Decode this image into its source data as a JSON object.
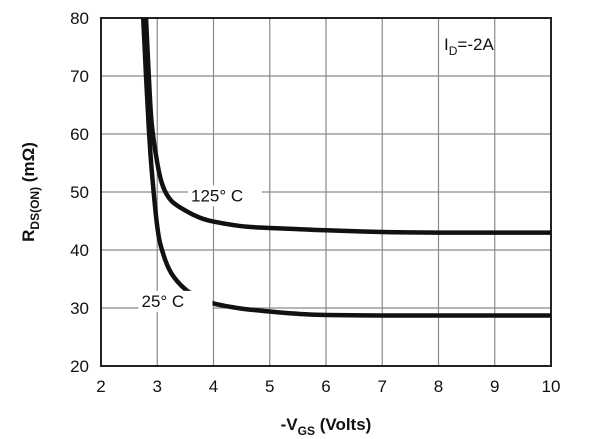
{
  "chart_data": {
    "type": "line",
    "xlabel": {
      "prefix": "-V",
      "sub": "GS",
      "suffix": " (Volts)"
    },
    "ylabel": {
      "prefix": "R",
      "sub": "DS(ON)",
      "suffix": " (mΩ)"
    },
    "xlim": [
      2,
      10
    ],
    "ylim": [
      20,
      80
    ],
    "xticks": [
      "2",
      "3",
      "4",
      "5",
      "6",
      "7",
      "8",
      "9",
      "10"
    ],
    "yticks": [
      "20",
      "30",
      "40",
      "50",
      "60",
      "70",
      "80"
    ],
    "grid": true,
    "annotation": {
      "prefix": "I",
      "sub": "D",
      "suffix": "=-2A"
    },
    "series": [
      {
        "name": "125° C",
        "x": [
          2.8,
          2.85,
          2.9,
          3.0,
          3.1,
          3.25,
          3.5,
          3.75,
          4.0,
          4.5,
          5.0,
          5.5,
          6.0,
          7.0,
          8.0,
          9.0,
          10.0
        ],
        "y": [
          80,
          70,
          62,
          55,
          51,
          48.5,
          46.8,
          45.6,
          44.9,
          44.1,
          43.8,
          43.6,
          43.4,
          43.1,
          43.0,
          43.0,
          43.0
        ]
      },
      {
        "name": "25° C",
        "x": [
          2.75,
          2.8,
          2.85,
          2.9,
          3.0,
          3.1,
          3.25,
          3.5,
          3.75,
          4.0,
          4.5,
          5.0,
          5.5,
          6.0,
          7.0,
          8.0,
          9.0,
          10.0
        ],
        "y": [
          80,
          70,
          61,
          54,
          44,
          39.5,
          36,
          33.2,
          31.8,
          30.8,
          29.9,
          29.4,
          29.0,
          28.8,
          28.7,
          28.7,
          28.7,
          28.7
        ]
      }
    ]
  }
}
